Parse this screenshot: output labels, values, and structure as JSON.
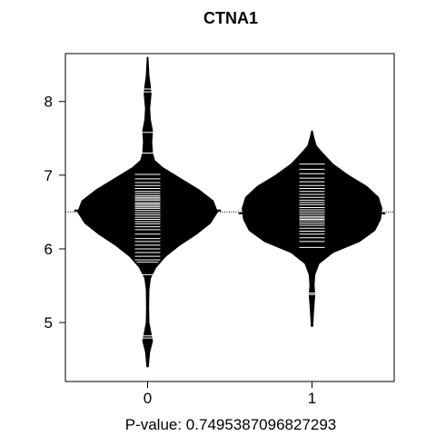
{
  "chart_data": {
    "type": "beanplot",
    "title": "CTNA1",
    "xlabel": "P-value: 0.7495387096827293",
    "ylabel": "",
    "categories": [
      "0",
      "1"
    ],
    "ylim": [
      4.2,
      8.65
    ],
    "yticks": [
      5,
      6,
      7,
      8
    ],
    "overall_mean": 6.5,
    "groups": [
      {
        "name": "0",
        "mean": 6.52,
        "min": 4.4,
        "max": 8.6,
        "density": [
          [
            4.4,
            0.01
          ],
          [
            4.6,
            0.03
          ],
          [
            4.75,
            0.07
          ],
          [
            4.85,
            0.05
          ],
          [
            5.0,
            0.02
          ],
          [
            5.2,
            0.015
          ],
          [
            5.45,
            0.02
          ],
          [
            5.6,
            0.04
          ],
          [
            5.75,
            0.12
          ],
          [
            5.9,
            0.26
          ],
          [
            6.05,
            0.46
          ],
          [
            6.2,
            0.7
          ],
          [
            6.35,
            0.9
          ],
          [
            6.5,
            1.0
          ],
          [
            6.65,
            0.94
          ],
          [
            6.8,
            0.74
          ],
          [
            6.95,
            0.48
          ],
          [
            7.1,
            0.22
          ],
          [
            7.2,
            0.1
          ],
          [
            7.3,
            0.07
          ],
          [
            7.45,
            0.06
          ],
          [
            7.6,
            0.07
          ],
          [
            7.75,
            0.04
          ],
          [
            7.9,
            0.03
          ],
          [
            8.1,
            0.05
          ],
          [
            8.2,
            0.04
          ],
          [
            8.35,
            0.02
          ],
          [
            8.6,
            0.005
          ]
        ],
        "values": [
          4.79,
          4.82,
          5.65,
          5.82,
          5.85,
          5.9,
          5.95,
          6.0,
          6.05,
          6.1,
          6.14,
          6.2,
          6.26,
          6.3,
          6.34,
          6.37,
          6.4,
          6.43,
          6.46,
          6.49,
          6.52,
          6.55,
          6.57,
          6.59,
          6.61,
          6.63,
          6.66,
          6.68,
          6.7,
          6.72,
          6.75,
          6.78,
          6.82,
          6.86,
          6.9,
          6.95,
          7.01,
          7.3,
          7.58,
          8.13,
          8.17
        ]
      },
      {
        "name": "1",
        "mean": 6.48,
        "min": 4.95,
        "max": 7.6,
        "density": [
          [
            4.95,
            0.01
          ],
          [
            5.1,
            0.02
          ],
          [
            5.25,
            0.03
          ],
          [
            5.38,
            0.04
          ],
          [
            5.5,
            0.03
          ],
          [
            5.65,
            0.04
          ],
          [
            5.8,
            0.1
          ],
          [
            5.95,
            0.3
          ],
          [
            6.1,
            0.68
          ],
          [
            6.25,
            0.9
          ],
          [
            6.4,
            0.98
          ],
          [
            6.55,
            1.0
          ],
          [
            6.7,
            0.95
          ],
          [
            6.85,
            0.78
          ],
          [
            7.0,
            0.52
          ],
          [
            7.15,
            0.3
          ],
          [
            7.3,
            0.15
          ],
          [
            7.4,
            0.06
          ],
          [
            7.5,
            0.03
          ],
          [
            7.6,
            0.005
          ]
        ],
        "values": [
          5.38,
          5.4,
          6.02,
          6.1,
          6.15,
          6.2,
          6.24,
          6.28,
          6.32,
          6.35,
          6.38,
          6.4,
          6.42,
          6.44,
          6.47,
          6.5,
          6.53,
          6.56,
          6.6,
          6.63,
          6.66,
          6.7,
          6.74,
          6.78,
          6.82,
          6.86,
          6.91,
          6.96,
          7.02,
          7.08,
          7.15
        ]
      }
    ],
    "colors": {
      "bean": "#000000",
      "lines": "#ffffff",
      "axis": "#000000"
    }
  }
}
